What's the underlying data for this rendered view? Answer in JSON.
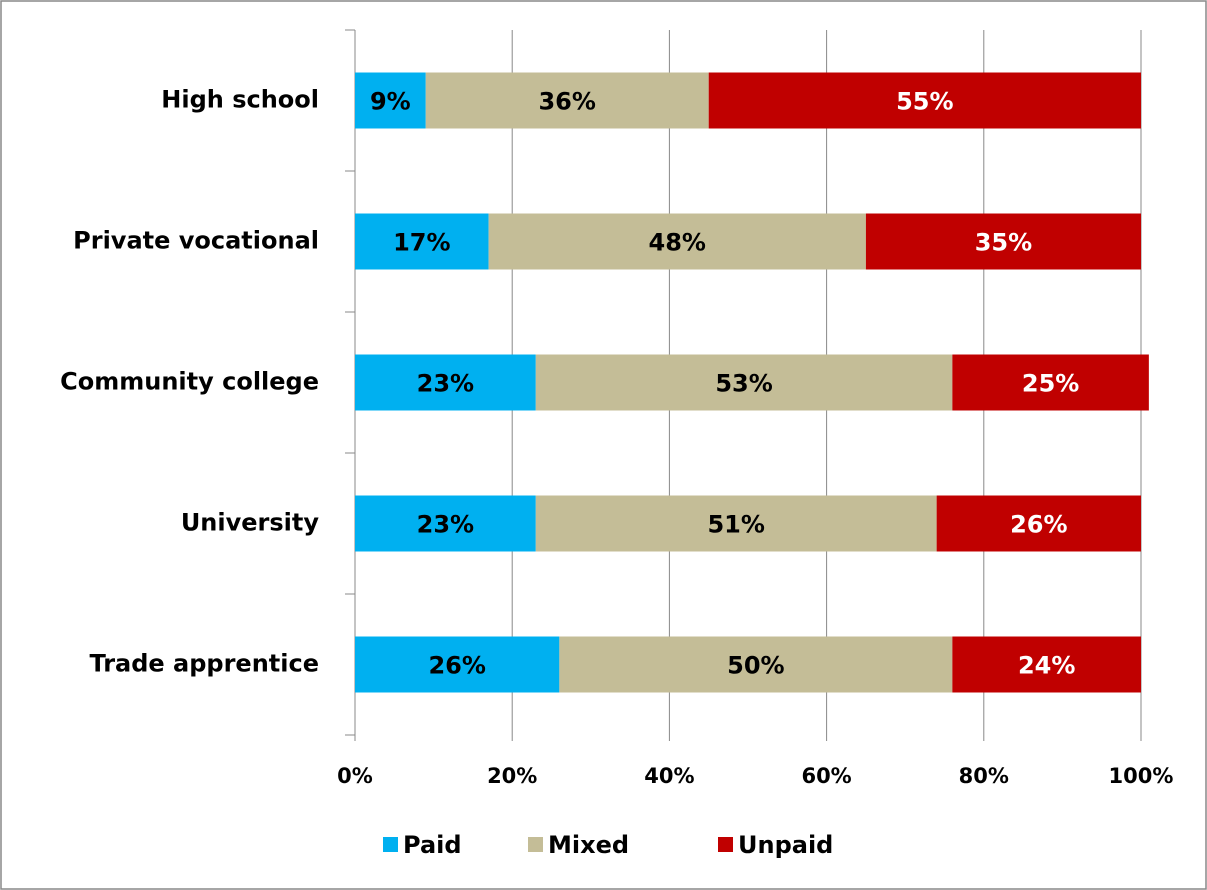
{
  "chart_data": {
    "type": "stacked_bar_horizontal",
    "categories": [
      "High school",
      "Private vocational",
      "Community college",
      "University",
      "Trade apprentice"
    ],
    "series": [
      {
        "name": "Paid",
        "color": "#00b0f0",
        "label_color": "#000000",
        "values": [
          9,
          17,
          23,
          23,
          26
        ],
        "value_labels": [
          "9%",
          "17%",
          "23%",
          "23%",
          "26%"
        ]
      },
      {
        "name": "Mixed",
        "color": "#c4bd97",
        "label_color": "#000000",
        "values": [
          36,
          48,
          53,
          51,
          50
        ],
        "value_labels": [
          "36%",
          "48%",
          "53%",
          "51%",
          "50%"
        ]
      },
      {
        "name": "Unpaid",
        "color": "#c00000",
        "label_color": "#ffffff",
        "values": [
          55,
          35,
          25,
          26,
          24
        ],
        "value_labels": [
          "55%",
          "35%",
          "25%",
          "26%",
          "24%"
        ]
      }
    ],
    "xlim": [
      0,
      100
    ],
    "xticks": [
      {
        "value": 0,
        "label": "0%"
      },
      {
        "value": 20,
        "label": "20%"
      },
      {
        "value": 40,
        "label": "40%"
      },
      {
        "value": 60,
        "label": "60%"
      },
      {
        "value": 80,
        "label": "80%"
      },
      {
        "value": 100,
        "label": "100%"
      }
    ],
    "grid": true,
    "legend": "bottom"
  }
}
